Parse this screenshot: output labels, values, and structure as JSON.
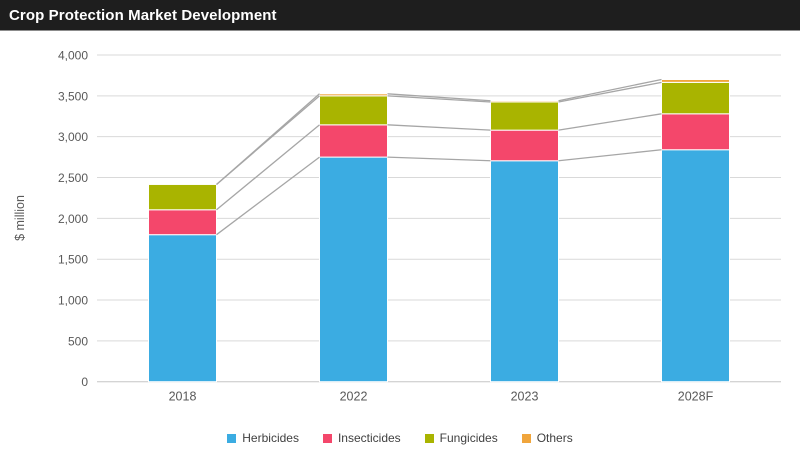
{
  "header": {
    "title": "Crop Protection Market Development"
  },
  "chart_data": {
    "type": "bar",
    "stacked": true,
    "title": "Crop Protection Market Development",
    "ylabel": "$ million",
    "categories": [
      "2018",
      "2022",
      "2023",
      "2028F"
    ],
    "series": [
      {
        "name": "Herbicides",
        "color": "#3BACE2",
        "values": [
          1800,
          2750,
          2705,
          2840
        ]
      },
      {
        "name": "Insecticides",
        "color": "#F4476B",
        "values": [
          305,
          395,
          375,
          440
        ]
      },
      {
        "name": "Fungicides",
        "color": "#A9B400",
        "values": [
          310,
          355,
          345,
          385
        ]
      },
      {
        "name": "Others",
        "color": "#F0A53C",
        "values": [
          0,
          25,
          15,
          35
        ]
      }
    ],
    "totals": [
      2415,
      3525,
      3440,
      3700
    ],
    "ylim": [
      0,
      4000
    ],
    "ytick_step": 500,
    "ytick_labels": [
      "0",
      "500",
      "1,000",
      "1,500",
      "2,000",
      "2,500",
      "3,000",
      "3,500",
      "4,000"
    ],
    "grid": true,
    "legend_position": "bottom",
    "series_lines": true
  },
  "style": {
    "title_bar_bg": "#1E1E1E",
    "title_color": "#FFFFFF",
    "gridline_color": "#D9D9D9",
    "zero_line_color": "#C6C6C6",
    "series_line_color": "#A6A6A6",
    "axis_text_color": "#595959",
    "legend_text_color": "#404040",
    "segment_border_color": "#FFFFFF"
  }
}
